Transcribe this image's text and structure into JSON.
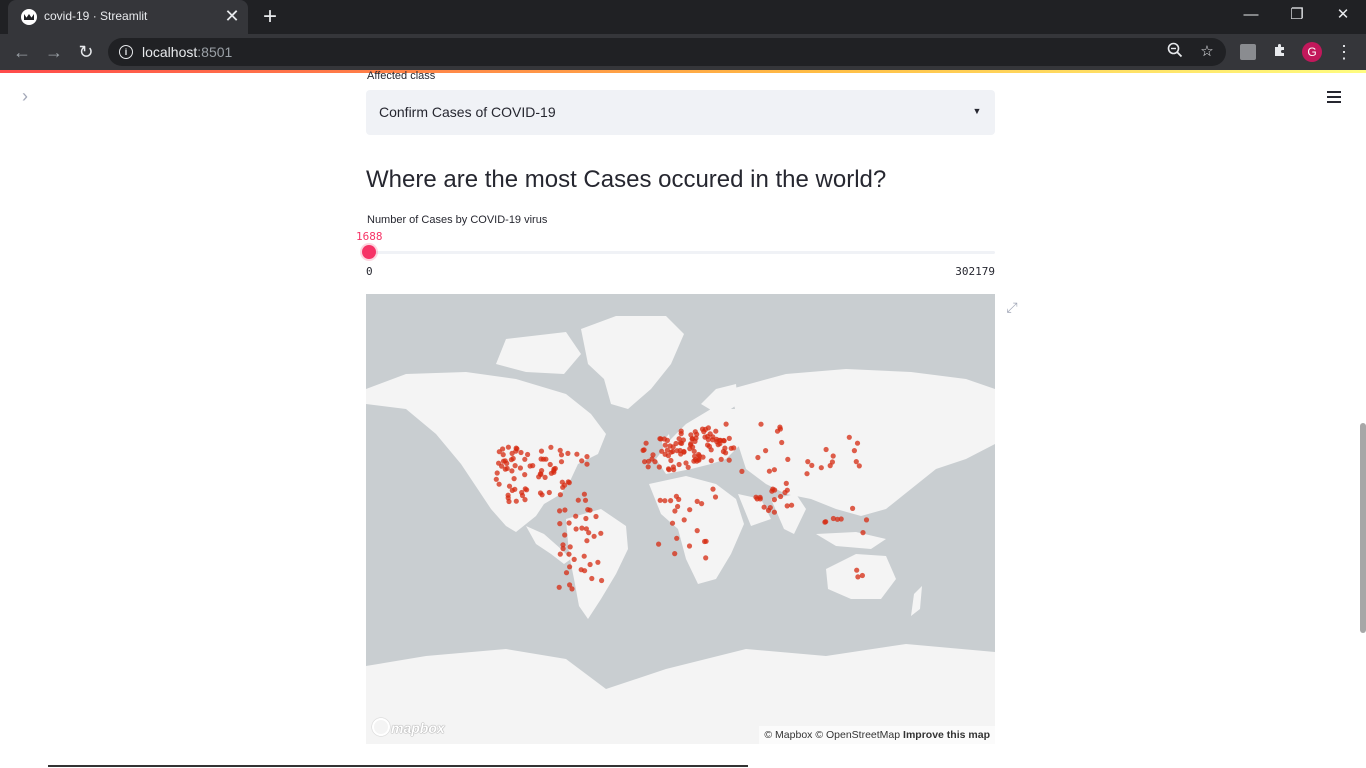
{
  "browser": {
    "tab_title": "covid-19 · Streamlit",
    "new_tab_symbol": "+",
    "close_symbol": "✕",
    "url_host": "localhost",
    "url_port": ":8501",
    "profile_initial": "G",
    "window_controls": {
      "minimize": "—",
      "restore": "❐",
      "close": "✕"
    }
  },
  "app": {
    "select": {
      "label": "Affected class",
      "value": "Confirm Cases of COVID-19"
    },
    "heading": "Where are the most Cases occured in the world?",
    "slider": {
      "label": "Number of Cases by COVID-19 virus",
      "value": "1688",
      "min": "0",
      "max": "302179",
      "value_fraction": 0.0056
    },
    "map": {
      "logo": "mapbox",
      "attribution_1": "© Mapbox © OpenStreetMap",
      "attribution_2": "Improve this map",
      "marker_color": "#d62a10",
      "land_color": "#f4f4f4",
      "water_color": "#c9ced1"
    }
  },
  "colors": {
    "accent": "#f63366",
    "chrome_dark": "#202124",
    "chrome_toolbar": "#35363a"
  }
}
